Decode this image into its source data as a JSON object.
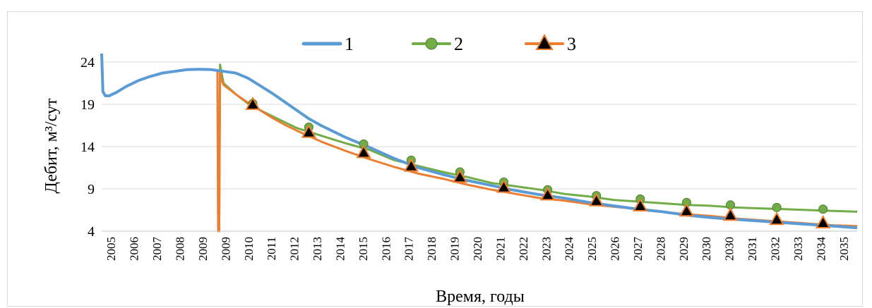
{
  "chart_data": {
    "type": "line",
    "title": "",
    "xlabel": "Время, годы",
    "ylabel": "Дебит, м³/сут",
    "ylim": [
      4,
      25
    ],
    "yticks": [
      4,
      9,
      14,
      19,
      24
    ],
    "xlim": [
      2005.0,
      2036.0
    ],
    "x_tick_labels": [
      "2005",
      "2006",
      "2007",
      "2008",
      "2009",
      "2009",
      "2010",
      "2011",
      "2012",
      "2013",
      "2014",
      "2015",
      "2016",
      "2017",
      "2018",
      "2019",
      "2020",
      "2021",
      "2022",
      "2023",
      "2024",
      "2025",
      "2026",
      "2027",
      "2028",
      "2029",
      "2030",
      "2030",
      "2031",
      "2032",
      "2033",
      "2034",
      "2035"
    ],
    "grid": "horizontal",
    "legend_position": "top-center",
    "series": [
      {
        "name": "1",
        "color": "#5B9BD5",
        "marker": "none",
        "x": [
          2005.0,
          2005.05,
          2005.15,
          2005.3,
          2005.6,
          2006.0,
          2006.5,
          2007.0,
          2007.5,
          2008.0,
          2008.5,
          2009.0,
          2009.5,
          2009.75,
          2010.0,
          2010.5,
          2011.0,
          2011.5,
          2012.0,
          2012.5,
          2013.0,
          2013.5,
          2014.0,
          2014.5,
          2015.0,
          2016.0,
          2017.0,
          2018.0,
          2019.0,
          2020.0,
          2021.0,
          2022.0,
          2023.0,
          2024.0,
          2025.0,
          2026.0,
          2027.0,
          2028.0,
          2029.0,
          2030.0,
          2031.0,
          2032.0,
          2033.0,
          2034.0,
          2035.0,
          2036.0
        ],
        "y": [
          25.0,
          20.5,
          20.0,
          20.0,
          20.4,
          21.1,
          21.8,
          22.3,
          22.7,
          22.9,
          23.1,
          23.15,
          23.1,
          23.0,
          22.9,
          22.7,
          22.1,
          21.2,
          20.3,
          19.3,
          18.3,
          17.3,
          16.5,
          15.8,
          15.1,
          13.9,
          12.6,
          11.5,
          10.7,
          10.0,
          9.4,
          8.8,
          8.3,
          7.9,
          7.4,
          7.0,
          6.6,
          6.3,
          5.9,
          5.6,
          5.4,
          5.2,
          5.0,
          4.8,
          4.6,
          4.4
        ]
      },
      {
        "name": "2",
        "color": "#70AD47",
        "marker": "circle",
        "x": [
          2005.0,
          2005.05,
          2005.15,
          2005.3,
          2005.6,
          2006.0,
          2006.5,
          2007.0,
          2007.5,
          2008.0,
          2008.5,
          2009.0,
          2009.5,
          2009.75,
          2009.78,
          2009.82,
          2009.86,
          2009.9,
          2010.0,
          2010.5,
          2011.0,
          2011.5,
          2012.0,
          2012.5,
          2013.0,
          2014.0,
          2015.0,
          2016.0,
          2017.0,
          2018.0,
          2019.0,
          2020.0,
          2021.0,
          2022.0,
          2023.0,
          2024.0,
          2025.0,
          2026.0,
          2027.0,
          2028.0,
          2029.0,
          2030.0,
          2031.0,
          2032.0,
          2033.0,
          2034.0,
          2035.0,
          2036.0
        ],
        "y": [
          25.0,
          20.5,
          20.0,
          20.0,
          20.4,
          21.1,
          21.8,
          22.3,
          22.7,
          22.9,
          23.1,
          23.15,
          23.1,
          23.0,
          4.0,
          4.0,
          23.7,
          23.0,
          21.5,
          20.2,
          19.1,
          18.3,
          17.6,
          16.9,
          16.2,
          15.3,
          14.4,
          13.6,
          12.4,
          11.7,
          11.0,
          10.4,
          9.7,
          9.3,
          8.9,
          8.4,
          8.1,
          7.7,
          7.5,
          7.3,
          7.1,
          7.0,
          6.8,
          6.7,
          6.6,
          6.5,
          6.4,
          6.3
        ],
        "marker_x": [
          2011.2,
          2013.5,
          2015.75,
          2017.7,
          2019.7,
          2021.5,
          2023.3,
          2025.3,
          2027.1,
          2029.0,
          2030.8,
          2032.7,
          2034.6
        ],
        "marker_y": [
          19.1,
          16.3,
          14.3,
          12.4,
          11.0,
          9.8,
          8.9,
          8.2,
          7.8,
          7.4,
          7.1,
          6.8,
          6.6
        ]
      },
      {
        "name": "3",
        "color": "#ED7D31",
        "marker": "triangle",
        "x": [
          2005.0,
          2005.05,
          2005.15,
          2005.3,
          2005.6,
          2006.0,
          2006.5,
          2007.0,
          2007.5,
          2008.0,
          2008.5,
          2009.0,
          2009.5,
          2009.75,
          2009.78,
          2009.82,
          2009.86,
          2009.9,
          2010.0,
          2010.5,
          2011.0,
          2011.5,
          2012.0,
          2012.5,
          2013.0,
          2014.0,
          2015.0,
          2016.0,
          2017.0,
          2018.0,
          2019.0,
          2020.0,
          2021.0,
          2022.0,
          2023.0,
          2024.0,
          2025.0,
          2026.0,
          2027.0,
          2028.0,
          2029.0,
          2030.0,
          2031.0,
          2032.0,
          2033.0,
          2034.0,
          2035.0,
          2036.0
        ],
        "y": [
          25.0,
          20.5,
          20.0,
          20.0,
          20.4,
          21.1,
          21.8,
          22.3,
          22.7,
          22.9,
          23.1,
          23.15,
          23.1,
          23.0,
          4.0,
          4.0,
          23.0,
          22.0,
          21.3,
          20.2,
          19.2,
          18.3,
          17.4,
          16.6,
          15.9,
          14.6,
          13.5,
          12.5,
          11.6,
          10.8,
          10.2,
          9.5,
          8.9,
          8.4,
          7.9,
          7.6,
          7.2,
          6.9,
          6.6,
          6.3,
          6.0,
          5.8,
          5.5,
          5.3,
          5.1,
          4.9,
          4.7,
          4.6
        ],
        "marker_x": [
          2011.2,
          2013.5,
          2015.75,
          2017.7,
          2019.7,
          2021.5,
          2023.3,
          2025.3,
          2027.1,
          2029.0,
          2030.8,
          2032.7,
          2034.6
        ],
        "marker_y": [
          19.0,
          15.7,
          13.3,
          11.7,
          10.4,
          9.2,
          8.3,
          7.6,
          7.0,
          6.4,
          5.9,
          5.4,
          5.0
        ]
      }
    ]
  }
}
